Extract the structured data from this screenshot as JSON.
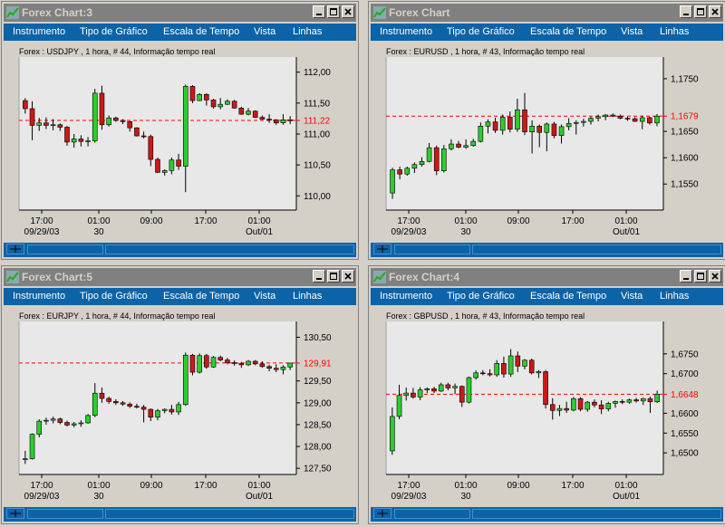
{
  "menu": [
    "Instrumento",
    "Tipo de Gráfico",
    "Escala de Tempo",
    "Vista",
    "Linhas"
  ],
  "colors": {
    "up": "#2ecc2e",
    "down": "#cc1818",
    "current": "#ff0000",
    "titlebar_inactive": "#808080",
    "menubar": "#0c63a8"
  },
  "charts": [
    {
      "title": "Forex Chart:3",
      "info": "Forex : USDJPY , 1 hora, # 44, Informação tempo real",
      "y_ticks": [
        "112,00",
        "111,50",
        "111,00",
        "110,50",
        "110,00"
      ],
      "x_ticks": [
        "17:00",
        "01:00",
        "09:00",
        "17:00",
        "01:00"
      ],
      "x_sub": [
        "09/29/03",
        "30",
        "",
        "",
        "Out/01"
      ],
      "current_price": "111,22"
    },
    {
      "title": "Forex Chart",
      "info": "Forex : EURUSD , 1 hora, # 43, Informação tempo real",
      "y_ticks": [
        "1,1750",
        "1,1650",
        "1,1600",
        "1,1550"
      ],
      "x_ticks": [
        "17:00",
        "01:00",
        "09:00",
        "17:00",
        "01:00"
      ],
      "x_sub": [
        "09/29/03",
        "30",
        "",
        "",
        "Out/01"
      ],
      "current_price": "1,1679"
    },
    {
      "title": "Forex Chart:5",
      "info": "Forex : EURJPY , 1 hora, # 44, Informação tempo real",
      "y_ticks": [
        "130,50",
        "129,50",
        "129,00",
        "128,50",
        "128,00",
        "127,50"
      ],
      "x_ticks": [
        "17:00",
        "01:00",
        "09:00",
        "17:00",
        "01:00"
      ],
      "x_sub": [
        "09/29/03",
        "30",
        "",
        "",
        "Out/01"
      ],
      "current_price": "129,91"
    },
    {
      "title": "Forex Chart:4",
      "info": "Forex : GBPUSD , 1 hora, # 43, Informação tempo real",
      "y_ticks": [
        "1,6750",
        "1,6700",
        "1,6600",
        "1,6550",
        "1,6500"
      ],
      "x_ticks": [
        "17:00",
        "01:00",
        "09:00",
        "17:00",
        "01:00"
      ],
      "x_sub": [
        "09/29/03",
        "30",
        "",
        "",
        "Out/01"
      ],
      "current_price": "1,6648"
    }
  ],
  "chart_data": [
    {
      "type": "candlestick",
      "title": "Forex : USDJPY , 1 hora, # 44, Informação tempo real",
      "ylim": [
        109.8,
        112.2
      ],
      "ticks": [
        112.0,
        111.5,
        111.0,
        110.5,
        110.0
      ],
      "current": 111.22,
      "ohlc": [
        [
          111.54,
          111.58,
          111.33,
          111.41
        ],
        [
          111.41,
          111.53,
          110.9,
          111.14
        ],
        [
          111.14,
          111.26,
          111.05,
          111.18
        ],
        [
          111.18,
          111.27,
          111.08,
          111.14
        ],
        [
          111.14,
          111.24,
          111.06,
          111.15
        ],
        [
          111.15,
          111.17,
          111.05,
          111.11
        ],
        [
          111.11,
          111.13,
          110.81,
          110.87
        ],
        [
          110.87,
          111.0,
          110.78,
          110.92
        ],
        [
          110.92,
          110.98,
          110.8,
          110.88
        ],
        [
          110.88,
          110.95,
          110.8,
          110.89
        ],
        [
          110.89,
          111.73,
          110.86,
          111.66
        ],
        [
          111.66,
          111.78,
          111.07,
          111.15
        ],
        [
          111.15,
          111.3,
          111.12,
          111.26
        ],
        [
          111.26,
          111.28,
          111.2,
          111.22
        ],
        [
          111.22,
          111.24,
          111.16,
          111.2
        ],
        [
          111.2,
          111.21,
          111.04,
          111.1
        ],
        [
          111.1,
          111.11,
          110.96,
          110.97
        ],
        [
          110.97,
          111.04,
          110.93,
          110.96
        ],
        [
          110.96,
          110.99,
          110.48,
          110.59
        ],
        [
          110.59,
          110.62,
          110.37,
          110.38
        ],
        [
          110.38,
          110.43,
          110.33,
          110.41
        ],
        [
          110.41,
          110.62,
          110.35,
          110.58
        ],
        [
          110.58,
          110.68,
          110.42,
          110.48
        ],
        [
          110.48,
          111.8,
          110.06,
          111.77
        ],
        [
          111.77,
          111.79,
          111.5,
          111.54
        ],
        [
          111.54,
          111.66,
          111.53,
          111.64
        ],
        [
          111.64,
          111.66,
          111.46,
          111.55
        ],
        [
          111.55,
          111.57,
          111.41,
          111.44
        ],
        [
          111.44,
          111.58,
          111.4,
          111.48
        ],
        [
          111.48,
          111.56,
          111.47,
          111.53
        ],
        [
          111.53,
          111.55,
          111.41,
          111.42
        ],
        [
          111.42,
          111.44,
          111.31,
          111.32
        ],
        [
          111.32,
          111.42,
          111.3,
          111.37
        ],
        [
          111.37,
          111.38,
          111.26,
          111.27
        ],
        [
          111.27,
          111.3,
          111.23,
          111.24
        ],
        [
          111.24,
          111.32,
          111.18,
          111.23
        ],
        [
          111.23,
          111.24,
          111.15,
          111.18
        ],
        [
          111.18,
          111.32,
          111.15,
          111.23
        ],
        [
          111.23,
          111.29,
          111.16,
          111.22
        ]
      ]
    },
    {
      "type": "candlestick",
      "title": "Forex : EURUSD , 1 hora, # 43, Informação tempo real",
      "ylim": [
        1.1504,
        1.1786
      ],
      "ticks": [
        1.175,
        1.165,
        1.16,
        1.155
      ],
      "current": 1.1679,
      "ohlc": [
        [
          1.1533,
          1.1581,
          1.1522,
          1.1577
        ],
        [
          1.1577,
          1.1583,
          1.1559,
          1.1569
        ],
        [
          1.1569,
          1.1583,
          1.1566,
          1.158
        ],
        [
          1.158,
          1.1591,
          1.1571,
          1.1587
        ],
        [
          1.1587,
          1.1601,
          1.1583,
          1.1593
        ],
        [
          1.1593,
          1.1628,
          1.1591,
          1.1619
        ],
        [
          1.1619,
          1.1623,
          1.1567,
          1.1575
        ],
        [
          1.1575,
          1.1624,
          1.1572,
          1.1617
        ],
        [
          1.1617,
          1.1635,
          1.1614,
          1.1626
        ],
        [
          1.1626,
          1.1632,
          1.1618,
          1.162
        ],
        [
          1.162,
          1.1635,
          1.1617,
          1.1623
        ],
        [
          1.1623,
          1.1636,
          1.1621,
          1.1631
        ],
        [
          1.1631,
          1.1667,
          1.1629,
          1.166
        ],
        [
          1.166,
          1.1673,
          1.1646,
          1.1668
        ],
        [
          1.1668,
          1.1676,
          1.1647,
          1.1652
        ],
        [
          1.1652,
          1.1682,
          1.1644,
          1.1677
        ],
        [
          1.1677,
          1.1688,
          1.1648,
          1.1654
        ],
        [
          1.1654,
          1.1712,
          1.1649,
          1.1691
        ],
        [
          1.1691,
          1.1723,
          1.1643,
          1.1649
        ],
        [
          1.1649,
          1.1671,
          1.1608,
          1.166
        ],
        [
          1.166,
          1.1663,
          1.162,
          1.1648
        ],
        [
          1.1648,
          1.1667,
          1.1612,
          1.1664
        ],
        [
          1.1664,
          1.1668,
          1.1637,
          1.1642
        ],
        [
          1.1642,
          1.1663,
          1.1627,
          1.1659
        ],
        [
          1.1659,
          1.1675,
          1.1652,
          1.1665
        ],
        [
          1.1665,
          1.1671,
          1.1644,
          1.1667
        ],
        [
          1.1667,
          1.1674,
          1.1659,
          1.1669
        ],
        [
          1.1669,
          1.1678,
          1.1663,
          1.1675
        ],
        [
          1.1675,
          1.1682,
          1.1669,
          1.1678
        ],
        [
          1.1678,
          1.1683,
          1.1671,
          1.1681
        ],
        [
          1.1681,
          1.1684,
          1.1677,
          1.1679
        ],
        [
          1.1679,
          1.1682,
          1.1673,
          1.1675
        ],
        [
          1.1675,
          1.1678,
          1.167,
          1.1674
        ],
        [
          1.1674,
          1.1677,
          1.1668,
          1.1669
        ],
        [
          1.1669,
          1.168,
          1.1654,
          1.1676
        ],
        [
          1.1676,
          1.1678,
          1.1663,
          1.1666
        ],
        [
          1.1666,
          1.1683,
          1.166,
          1.1679
        ]
      ]
    },
    {
      "type": "candlestick",
      "title": "Forex : EURJPY , 1 hora, # 44, Informação tempo real",
      "ylim": [
        127.4,
        130.8
      ],
      "ticks": [
        130.5,
        129.5,
        129.0,
        128.5,
        128.0,
        127.5
      ],
      "current": 129.91,
      "ohlc": [
        [
          127.7,
          127.9,
          127.6,
          127.72
        ],
        [
          127.72,
          128.3,
          127.7,
          128.28
        ],
        [
          128.28,
          128.62,
          128.21,
          128.58
        ],
        [
          128.58,
          128.66,
          128.5,
          128.6
        ],
        [
          128.6,
          128.68,
          128.53,
          128.63
        ],
        [
          128.63,
          128.66,
          128.51,
          128.55
        ],
        [
          128.55,
          128.59,
          128.46,
          128.49
        ],
        [
          128.49,
          128.56,
          128.44,
          128.52
        ],
        [
          128.52,
          128.6,
          128.45,
          128.54
        ],
        [
          128.54,
          128.74,
          128.52,
          128.71
        ],
        [
          128.71,
          129.45,
          128.67,
          129.22
        ],
        [
          129.22,
          129.35,
          129.0,
          129.1
        ],
        [
          129.1,
          129.14,
          128.98,
          129.03
        ],
        [
          129.03,
          129.08,
          128.95,
          129.0
        ],
        [
          129.0,
          129.04,
          128.93,
          128.97
        ],
        [
          128.97,
          129.01,
          128.88,
          128.92
        ],
        [
          128.92,
          128.98,
          128.87,
          128.9
        ],
        [
          128.9,
          128.95,
          128.55,
          128.85
        ],
        [
          128.85,
          128.87,
          128.58,
          128.67
        ],
        [
          128.67,
          128.86,
          128.6,
          128.82
        ],
        [
          128.82,
          128.87,
          128.76,
          128.85
        ],
        [
          128.85,
          128.95,
          128.73,
          128.79
        ],
        [
          128.79,
          129.02,
          128.72,
          128.96
        ],
        [
          128.96,
          130.15,
          128.93,
          130.09
        ],
        [
          130.09,
          130.12,
          129.63,
          129.7
        ],
        [
          129.7,
          130.13,
          129.67,
          130.08
        ],
        [
          130.08,
          130.12,
          129.78,
          129.82
        ],
        [
          129.82,
          130.07,
          129.8,
          130.04
        ],
        [
          130.04,
          130.08,
          129.95,
          129.98
        ],
        [
          129.98,
          130.03,
          129.88,
          129.92
        ],
        [
          129.92,
          129.97,
          129.85,
          129.9
        ],
        [
          129.9,
          129.94,
          129.8,
          129.87
        ],
        [
          129.87,
          129.98,
          129.84,
          129.95
        ],
        [
          129.95,
          129.98,
          129.86,
          129.89
        ],
        [
          129.89,
          129.95,
          129.8,
          129.83
        ],
        [
          129.83,
          129.87,
          129.72,
          129.79
        ],
        [
          129.79,
          129.88,
          129.7,
          129.76
        ],
        [
          129.76,
          129.86,
          129.65,
          129.82
        ],
        [
          129.82,
          129.91,
          129.75,
          129.91
        ]
      ]
    },
    {
      "type": "candlestick",
      "title": "Forex : GBPUSD , 1 hora, # 43, Informação tempo real",
      "ylim": [
        1.645,
        1.6825
      ],
      "ticks": [
        1.675,
        1.67,
        1.66,
        1.655,
        1.65
      ],
      "current": 1.6648,
      "ohlc": [
        [
          1.6505,
          1.6615,
          1.6495,
          1.6592
        ],
        [
          1.6592,
          1.6672,
          1.6585,
          1.6645
        ],
        [
          1.6645,
          1.6665,
          1.6632,
          1.6651
        ],
        [
          1.6651,
          1.6664,
          1.6637,
          1.6641
        ],
        [
          1.6641,
          1.6666,
          1.6633,
          1.6659
        ],
        [
          1.6659,
          1.6665,
          1.6651,
          1.6662
        ],
        [
          1.6662,
          1.6667,
          1.6651,
          1.6656
        ],
        [
          1.6656,
          1.6677,
          1.6654,
          1.6672
        ],
        [
          1.6672,
          1.6677,
          1.6658,
          1.6664
        ],
        [
          1.6664,
          1.6675,
          1.6648,
          1.6668
        ],
        [
          1.6668,
          1.667,
          1.6616,
          1.6628
        ],
        [
          1.6628,
          1.6693,
          1.6625,
          1.669
        ],
        [
          1.669,
          1.6708,
          1.6685,
          1.6702
        ],
        [
          1.6702,
          1.6709,
          1.6696,
          1.67
        ],
        [
          1.67,
          1.6711,
          1.6693,
          1.6697
        ],
        [
          1.6697,
          1.6734,
          1.6692,
          1.6726
        ],
        [
          1.6726,
          1.6743,
          1.669,
          1.6699
        ],
        [
          1.6699,
          1.6762,
          1.6692,
          1.6745
        ],
        [
          1.6745,
          1.6756,
          1.6704,
          1.6719
        ],
        [
          1.6719,
          1.6737,
          1.6711,
          1.6734
        ],
        [
          1.6734,
          1.6738,
          1.6698,
          1.6702
        ],
        [
          1.6702,
          1.6709,
          1.6689,
          1.6705
        ],
        [
          1.6705,
          1.6709,
          1.6612,
          1.6622
        ],
        [
          1.6622,
          1.6638,
          1.6584,
          1.6607
        ],
        [
          1.6607,
          1.6621,
          1.6593,
          1.6612
        ],
        [
          1.6612,
          1.6629,
          1.6601,
          1.6608
        ],
        [
          1.6608,
          1.6641,
          1.6605,
          1.6637
        ],
        [
          1.6637,
          1.6641,
          1.6605,
          1.661
        ],
        [
          1.661,
          1.6631,
          1.6604,
          1.6628
        ],
        [
          1.6628,
          1.6635,
          1.6615,
          1.6621
        ],
        [
          1.6621,
          1.6633,
          1.6598,
          1.6611
        ],
        [
          1.6611,
          1.6629,
          1.6605,
          1.6625
        ],
        [
          1.6625,
          1.6632,
          1.6614,
          1.663
        ],
        [
          1.663,
          1.6635,
          1.6623,
          1.6628
        ],
        [
          1.6628,
          1.6637,
          1.6624,
          1.6634
        ],
        [
          1.6634,
          1.6639,
          1.6627,
          1.6631
        ],
        [
          1.6631,
          1.6639,
          1.6621,
          1.6637
        ],
        [
          1.6637,
          1.6642,
          1.6601,
          1.6629
        ],
        [
          1.6629,
          1.6657,
          1.6626,
          1.6648
        ]
      ]
    }
  ]
}
